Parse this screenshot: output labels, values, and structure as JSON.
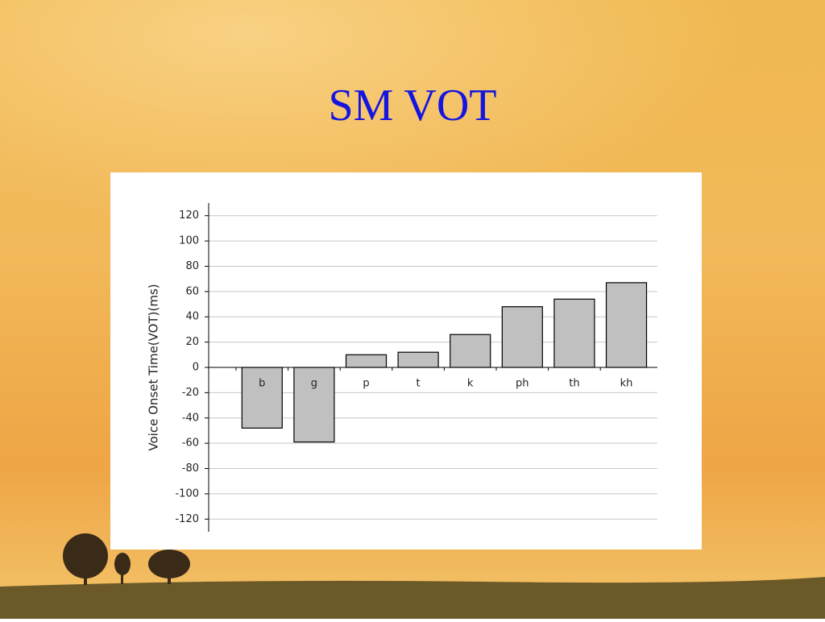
{
  "chart_data": {
    "type": "bar",
    "title": "SM VOT",
    "y_label": "Voice Onset Time(VOT)(ms)",
    "categories": [
      "b",
      "g",
      "p",
      "t",
      "k",
      "ph",
      "th",
      "kh"
    ],
    "values": [
      -48,
      -59,
      10,
      12,
      26,
      48,
      54,
      67
    ],
    "color": "#c0c0c0",
    "ylim": [
      -130,
      130
    ],
    "yticks": [
      -120,
      -100,
      -80,
      -60,
      -40,
      -20,
      0,
      20,
      40,
      60,
      80,
      100,
      120
    ],
    "grid": true
  }
}
